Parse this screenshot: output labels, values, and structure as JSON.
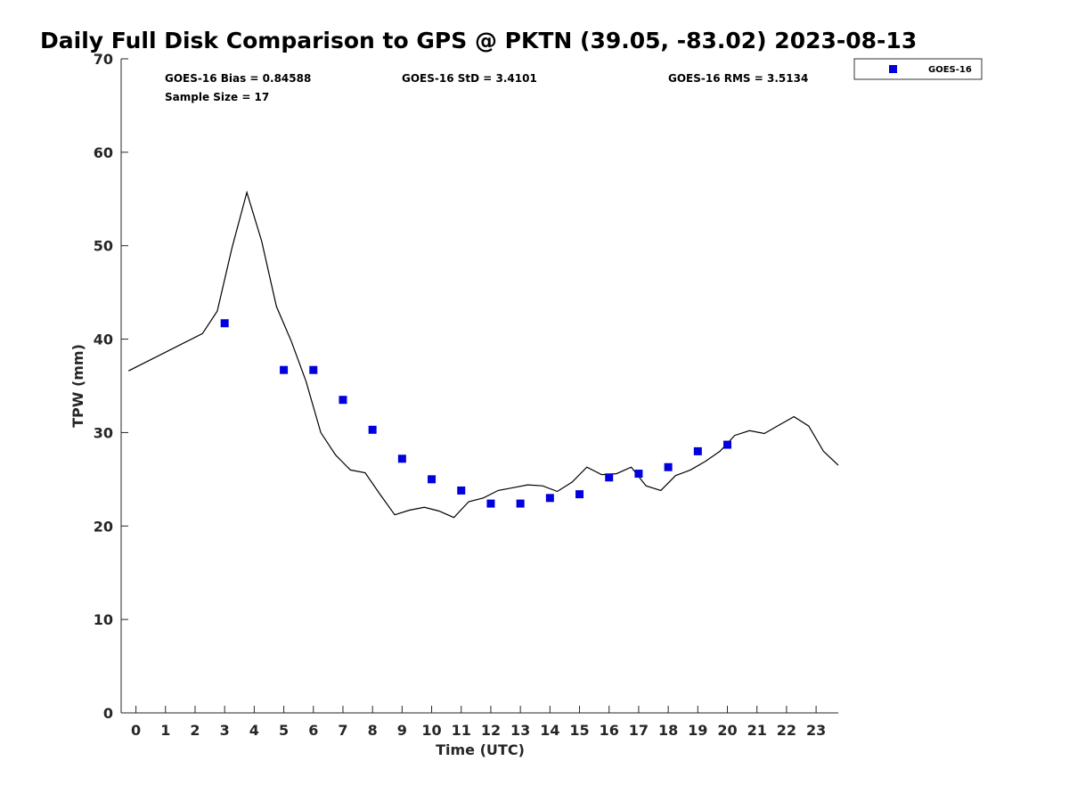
{
  "chart_data": {
    "type": "line",
    "title": "Daily Full Disk Comparison to GPS @ PKTN (39.05, -83.02) 2023-08-13",
    "xlabel": "Time (UTC)",
    "ylabel": "TPW (mm)",
    "xlim": [
      -0.5,
      23.75
    ],
    "ylim": [
      0,
      70
    ],
    "x_ticks": [
      "0",
      "1",
      "2",
      "3",
      "4",
      "5",
      "6",
      "7",
      "8",
      "9",
      "10",
      "11",
      "12",
      "13",
      "14",
      "15",
      "16",
      "17",
      "18",
      "19",
      "20",
      "21",
      "22",
      "23"
    ],
    "y_ticks": [
      "0",
      "10",
      "20",
      "30",
      "40",
      "50",
      "60",
      "70"
    ],
    "grid": false,
    "legend_position": "top-right",
    "stats": {
      "bias": "GOES-16 Bias = 0.84588",
      "std": "GOES-16 StD = 3.4101",
      "rms": "GOES-16 RMS = 3.5134",
      "sample": "Sample Size = 17"
    },
    "series": [
      {
        "name": "GPS",
        "type": "line",
        "color": "#000000",
        "x": [
          -0.25,
          2.25,
          2.75,
          3.25,
          3.75,
          4.25,
          4.75,
          5.25,
          5.75,
          6.25,
          6.75,
          7.25,
          7.75,
          8.25,
          8.75,
          9.25,
          9.75,
          10.25,
          10.75,
          11.25,
          11.75,
          12.25,
          12.75,
          13.25,
          13.75,
          14.25,
          14.75,
          15.25,
          15.75,
          16.25,
          16.75,
          17.25,
          17.75,
          18.25,
          18.75,
          19.25,
          19.75,
          20.25,
          20.75,
          21.25,
          21.75,
          22.25,
          22.75,
          23.25,
          23.75
        ],
        "values": [
          36.6,
          40.6,
          43.0,
          49.8,
          55.7,
          50.5,
          43.5,
          39.8,
          35.5,
          30.0,
          27.6,
          26.0,
          25.7,
          23.4,
          21.2,
          21.7,
          22.0,
          21.6,
          20.9,
          22.6,
          23.0,
          23.8,
          24.1,
          24.4,
          24.3,
          23.7,
          24.7,
          26.3,
          25.5,
          25.6,
          26.3,
          24.3,
          23.8,
          25.4,
          26.0,
          26.9,
          28.0,
          29.7,
          30.2,
          29.9,
          30.8,
          31.7,
          30.7,
          28.0,
          26.5
        ]
      },
      {
        "name": "GOES-16",
        "type": "scatter",
        "color": "#0000dd",
        "x": [
          3,
          5,
          6,
          7,
          8,
          9,
          10,
          11,
          12,
          13,
          14,
          15,
          16,
          17,
          18,
          19,
          20
        ],
        "values": [
          41.7,
          36.7,
          36.7,
          33.5,
          30.3,
          27.2,
          25.0,
          23.8,
          22.4,
          22.4,
          23.0,
          23.4,
          25.2,
          25.6,
          26.3,
          28.0,
          28.7
        ]
      }
    ]
  }
}
